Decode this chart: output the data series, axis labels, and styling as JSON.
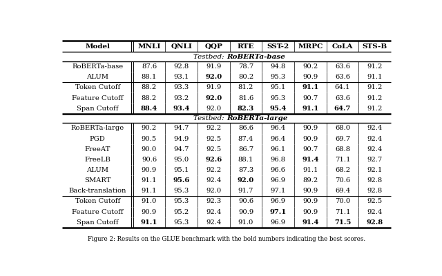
{
  "headers": [
    "Model",
    "MNLI",
    "QNLI",
    "QQP",
    "RTE",
    "SST-2",
    "MRPC",
    "CoLA",
    "STS-B"
  ],
  "section1_title_normal": "Testbed: ",
  "section1_title_bold": "RoBERTa-base",
  "section2_title_normal": "Testbed: ",
  "section2_title_bold": "RoBERTa-large",
  "section1_rows": [
    {
      "model": "RoBERTa-base",
      "vals": [
        "87.6",
        "92.8",
        "91.9",
        "78.7",
        "94.8",
        "90.2",
        "63.6",
        "91.2"
      ],
      "bold": []
    },
    {
      "model": "ALUM",
      "vals": [
        "88.1",
        "93.1",
        "92.0",
        "80.2",
        "95.3",
        "90.9",
        "63.6",
        "91.1"
      ],
      "bold": [
        2
      ]
    },
    {
      "model": "Token Cutoff",
      "vals": [
        "88.2",
        "93.3",
        "91.9",
        "81.2",
        "95.1",
        "91.1",
        "64.1",
        "91.2"
      ],
      "bold": [
        5
      ]
    },
    {
      "model": "Feature Cutoff",
      "vals": [
        "88.2",
        "93.2",
        "92.0",
        "81.6",
        "95.3",
        "90.7",
        "63.6",
        "91.2"
      ],
      "bold": [
        2
      ]
    },
    {
      "model": "Span Cutoff",
      "vals": [
        "88.4",
        "93.4",
        "92.0",
        "82.3",
        "95.4",
        "91.1",
        "64.7",
        "91.2"
      ],
      "bold": [
        0,
        1,
        3,
        4,
        5,
        6
      ]
    }
  ],
  "section2_rows": [
    {
      "model": "RoBERTa-large",
      "vals": [
        "90.2",
        "94.7",
        "92.2",
        "86.6",
        "96.4",
        "90.9",
        "68.0",
        "92.4"
      ],
      "bold": []
    },
    {
      "model": "PGD",
      "vals": [
        "90.5",
        "94.9",
        "92.5",
        "87.4",
        "96.4",
        "90.9",
        "69.7",
        "92.4"
      ],
      "bold": []
    },
    {
      "model": "FreeAT",
      "vals": [
        "90.0",
        "94.7",
        "92.5",
        "86.7",
        "96.1",
        "90.7",
        "68.8",
        "92.4"
      ],
      "bold": []
    },
    {
      "model": "FreeLB",
      "vals": [
        "90.6",
        "95.0",
        "92.6",
        "88.1",
        "96.8",
        "91.4",
        "71.1",
        "92.7"
      ],
      "bold": [
        2,
        5
      ]
    },
    {
      "model": "ALUM",
      "vals": [
        "90.9",
        "95.1",
        "92.2",
        "87.3",
        "96.6",
        "91.1",
        "68.2",
        "92.1"
      ],
      "bold": []
    },
    {
      "model": "SMART",
      "vals": [
        "91.1",
        "95.6",
        "92.4",
        "92.0",
        "96.9",
        "89.2",
        "70.6",
        "92.8"
      ],
      "bold": [
        1,
        3
      ]
    },
    {
      "model": "Back-translation",
      "vals": [
        "91.1",
        "95.3",
        "92.0",
        "91.7",
        "97.1",
        "90.9",
        "69.4",
        "92.8"
      ],
      "bold": []
    },
    {
      "model": "Token Cutoff",
      "vals": [
        "91.0",
        "95.3",
        "92.3",
        "90.6",
        "96.9",
        "90.9",
        "70.0",
        "92.5"
      ],
      "bold": []
    },
    {
      "model": "Feature Cutoff",
      "vals": [
        "90.9",
        "95.2",
        "92.4",
        "90.9",
        "97.1",
        "90.9",
        "71.1",
        "92.4"
      ],
      "bold": [
        4
      ]
    },
    {
      "model": "Span Cutoff",
      "vals": [
        "91.1",
        "95.3",
        "92.4",
        "91.0",
        "96.9",
        "91.4",
        "71.5",
        "92.8"
      ],
      "bold": [
        0,
        5,
        6,
        7
      ]
    }
  ],
  "caption": "Figure 2: Results on the GLUE benchmark with the bold numbers indicating the best scores.",
  "col_widths_rel": [
    2.2,
    1.0,
    1.0,
    1.0,
    1.0,
    1.0,
    1.0,
    1.0,
    1.0
  ]
}
